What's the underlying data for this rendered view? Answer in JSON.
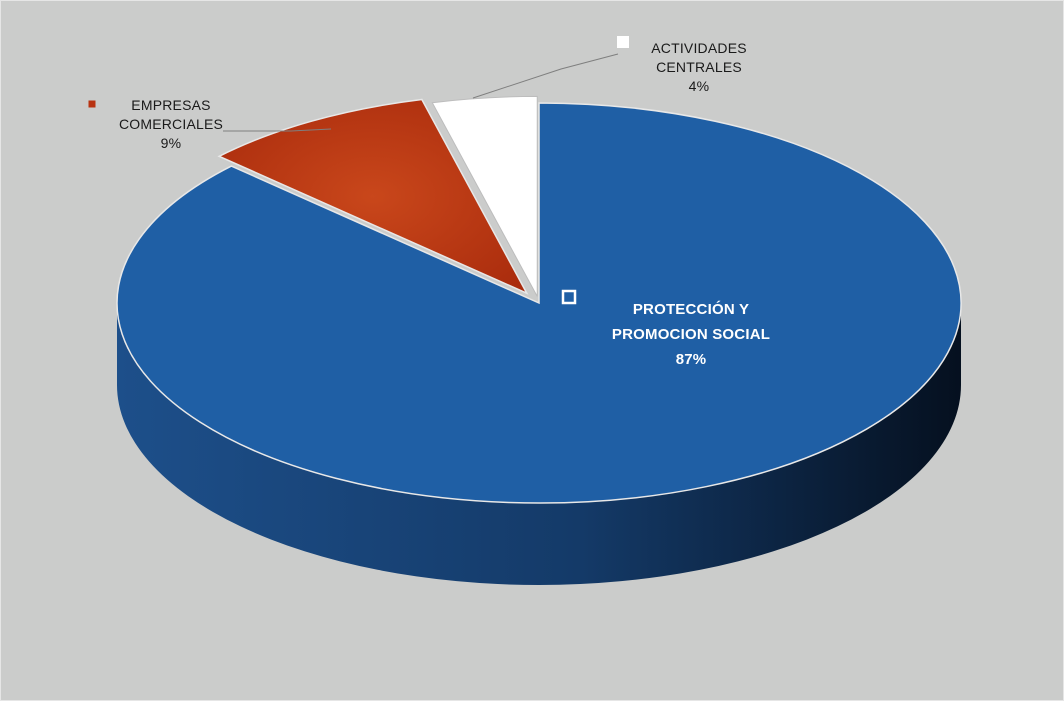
{
  "chart_data": {
    "type": "pie",
    "title": "",
    "series": [
      {
        "values": [
          87,
          9,
          4
        ]
      }
    ],
    "categories": [
      "PROTECCIÓN Y PROMOCION SOCIAL",
      "EMPRESAS COMERCIALES",
      "ACTIVIDADES CENTRALES"
    ],
    "slices": [
      {
        "label_lines": [
          "PROTECCIÓN Y",
          "PROMOCION SOCIAL"
        ],
        "value_text": "87%",
        "value": 87,
        "color": "#1f5fa5"
      },
      {
        "label_lines": [
          "EMPRESAS",
          "COMERCIALES"
        ],
        "value_text": "9%",
        "value": 9,
        "color": "#b83312"
      },
      {
        "label_lines": [
          "ACTIVIDADES",
          "CENTRALES"
        ],
        "value_text": "4%",
        "value": 4,
        "color": "#ffffff"
      }
    ],
    "legend": "none",
    "three_d": true
  },
  "colors": {
    "background": "#cbcccb",
    "blue_side": "#123a6b",
    "red_side": "#7a1e08"
  }
}
